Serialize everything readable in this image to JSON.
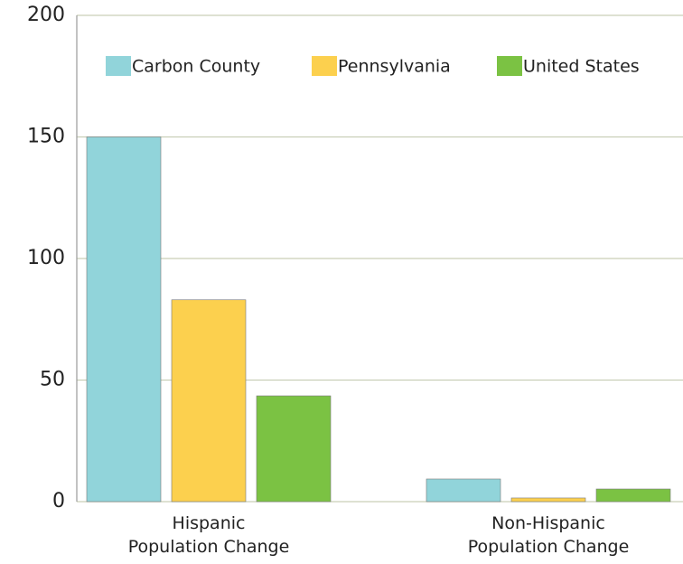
{
  "chart_data": {
    "type": "bar",
    "categories": [
      "Hispanic\nPopulation Change",
      "Non-Hispanic\nPopulation Change"
    ],
    "series": [
      {
        "name": "Carbon County",
        "color": "#91d4da",
        "values": [
          150,
          9.3
        ]
      },
      {
        "name": "Pennsylvania",
        "color": "#fcd04e",
        "values": [
          83,
          1.5
        ]
      },
      {
        "name": "United States",
        "color": "#7bc243",
        "values": [
          43.5,
          5.2
        ]
      }
    ],
    "ylim": [
      0,
      200
    ],
    "yticks": [
      0,
      50,
      100,
      150,
      200
    ],
    "grid": true
  }
}
